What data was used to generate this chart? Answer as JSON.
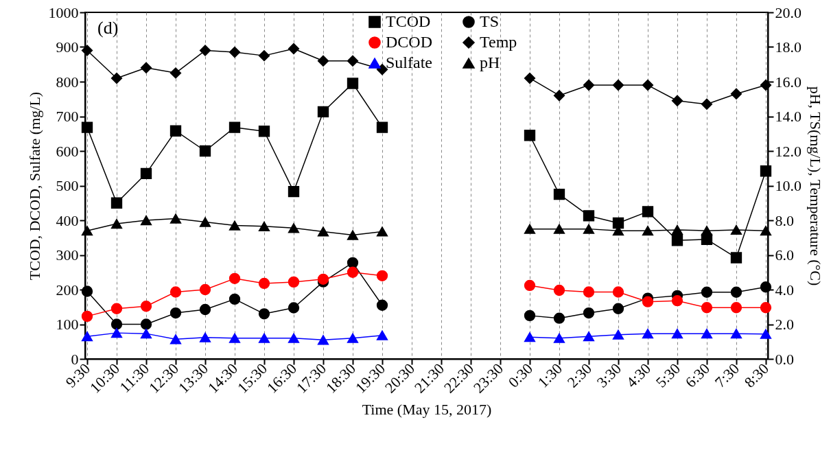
{
  "chart_data": {
    "type": "line",
    "xlabel": "Time (May 15, 2017)",
    "ylabel": "TCOD, DCOD, Sulfate (mg/L)",
    "y2label": "pH, TS(mg/L), Temperature (°C)",
    "categories": [
      "9:30",
      "10:30",
      "11:30",
      "12:30",
      "13:30",
      "14:30",
      "15:30",
      "16:30",
      "17:30",
      "18:30",
      "19:30",
      "20:30",
      "21:30",
      "22:30",
      "23:30",
      "0:30",
      "1:30",
      "2:30",
      "3:30",
      "4:30",
      "5:30",
      "6:30",
      "7:30",
      "8:30"
    ],
    "ylim": [
      0,
      1000
    ],
    "yticks": [
      0,
      100,
      200,
      300,
      400,
      500,
      600,
      700,
      800,
      900,
      {
        "value": 1000,
        "label": "1000"
      }
    ],
    "y2lim": [
      0,
      20
    ],
    "y2ticks": [
      {
        "value": 0,
        "label": "0.0"
      },
      {
        "value": 2,
        "label": "2.0"
      },
      {
        "value": 4,
        "label": "4.0"
      },
      {
        "value": 6,
        "label": "6.0"
      },
      {
        "value": 8,
        "label": "8.0"
      },
      {
        "value": 10,
        "label": "10.0"
      },
      {
        "value": 12,
        "label": "12.0"
      },
      {
        "value": 14,
        "label": "14.0"
      },
      {
        "value": 16,
        "label": "16.0"
      },
      {
        "value": 18,
        "label": "18.0"
      },
      {
        "value": 20,
        "label": "20.0"
      }
    ],
    "grid": "x",
    "legend": "top",
    "line_style": "solid",
    "annotations": [
      "(d)"
    ],
    "series": [
      {
        "name": "TCOD",
        "color": "#000000",
        "marker": "square",
        "values": [
          668,
          450,
          535,
          658,
          600,
          668,
          657,
          483,
          713,
          795,
          668,
          null,
          null,
          null,
          null,
          645,
          475,
          413,
          392,
          425,
          342,
          345,
          292,
          542
        ]
      },
      {
        "name": "DCOD",
        "color": "#ff0000",
        "marker": "circle",
        "values": [
          123,
          145,
          152,
          193,
          200,
          232,
          218,
          222,
          230,
          250,
          240,
          null,
          null,
          null,
          null,
          212,
          198,
          193,
          193,
          165,
          168,
          148,
          148,
          148
        ]
      },
      {
        "name": "Sulfate",
        "color": "#0000ff",
        "marker": "triangle",
        "values": [
          65,
          75,
          73,
          57,
          62,
          60,
          60,
          60,
          55,
          60,
          68,
          null,
          null,
          null,
          null,
          63,
          60,
          65,
          70,
          73,
          73,
          73,
          73,
          72
        ]
      },
      {
        "name": "TS",
        "color": "#000000",
        "marker": "circle",
        "axis": "y2",
        "values": [
          3.9,
          2.0,
          2.0,
          2.65,
          2.85,
          3.45,
          2.6,
          2.95,
          4.45,
          5.55,
          3.1,
          null,
          null,
          null,
          null,
          2.5,
          2.35,
          2.65,
          2.9,
          3.5,
          3.65,
          3.85,
          3.85,
          4.15
        ]
      },
      {
        "name": "Temp",
        "color": "#000000",
        "marker": "diamond",
        "axis": "y2",
        "values": [
          17.8,
          16.2,
          16.8,
          16.5,
          17.8,
          17.7,
          17.5,
          17.9,
          17.2,
          17.2,
          16.7,
          null,
          null,
          null,
          null,
          16.2,
          15.2,
          15.8,
          15.8,
          15.8,
          14.9,
          14.7,
          15.3,
          15.8
        ]
      },
      {
        "name": "pH",
        "color": "#000000",
        "marker": "triangle",
        "axis": "y2",
        "values": [
          7.4,
          7.8,
          8.0,
          8.1,
          7.9,
          7.7,
          7.65,
          7.55,
          7.35,
          7.15,
          7.35,
          null,
          null,
          null,
          null,
          7.5,
          7.5,
          7.5,
          7.4,
          7.4,
          7.45,
          7.4,
          7.45,
          7.4
        ]
      }
    ]
  }
}
